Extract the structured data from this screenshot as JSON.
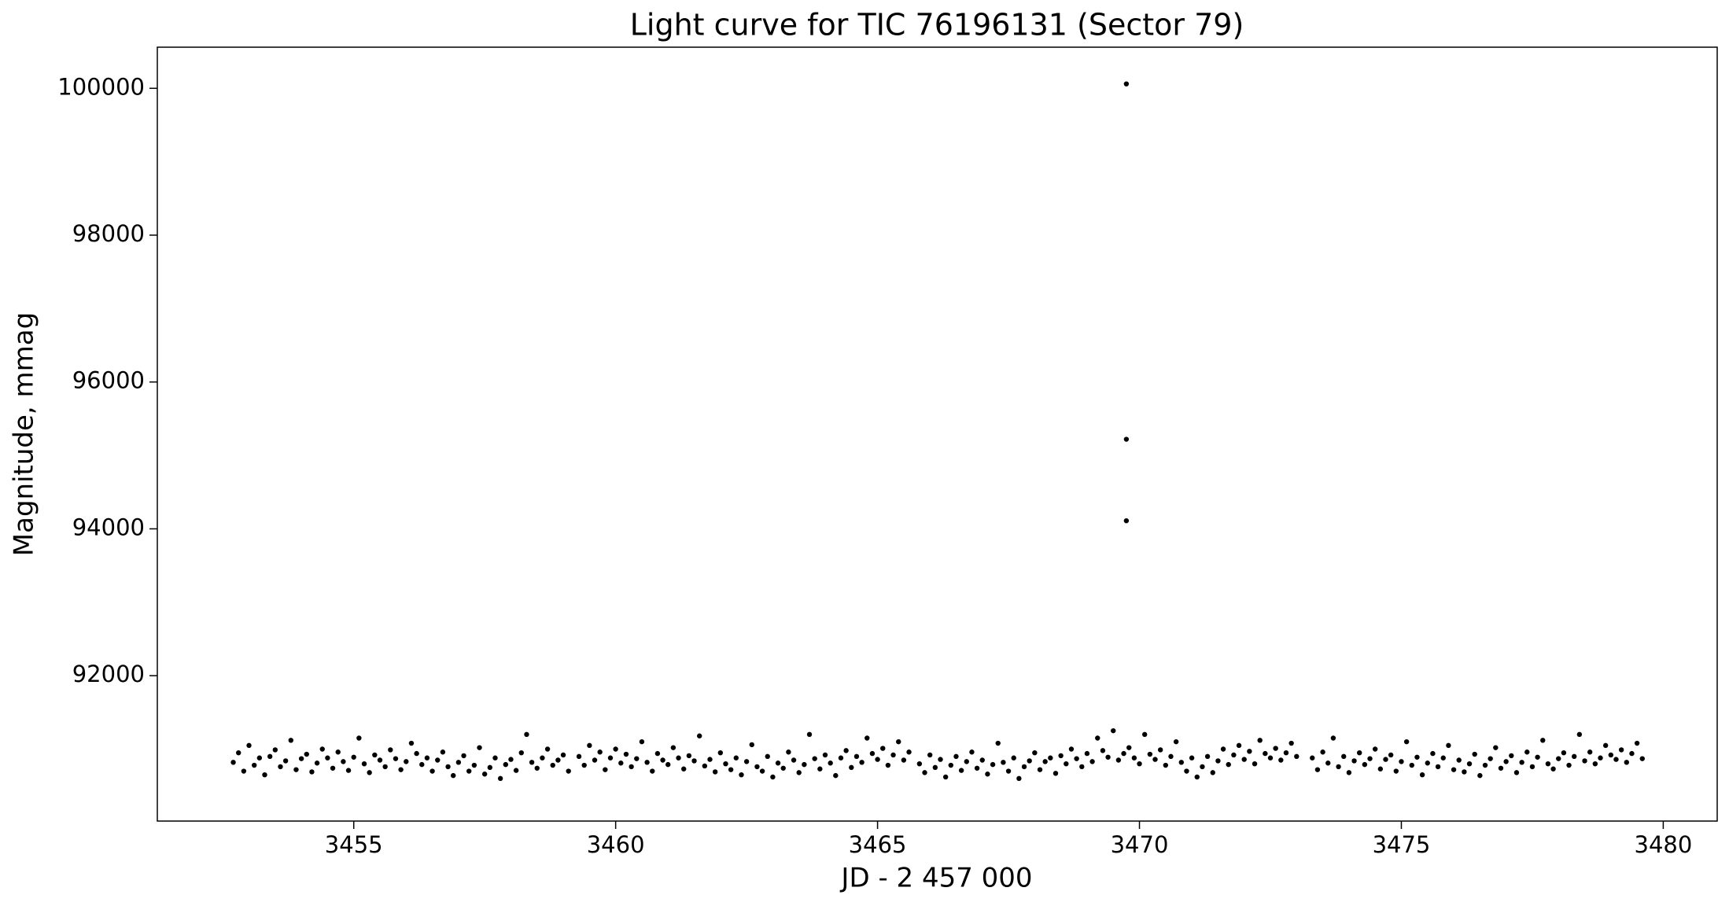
{
  "chart_data": {
    "type": "scatter",
    "title": "Light curve for TIC 76196131 (Sector 79)",
    "x_label": "JD - 2 457 000",
    "y_label": "Magnitude, mmag",
    "color": "#000000",
    "grid": false,
    "xlim": [
      3451.25,
      3481.03
    ],
    "ylim": [
      90020,
      100560
    ],
    "xticks": [
      3455,
      3460,
      3465,
      3470,
      3475,
      3480
    ],
    "yticks": [
      92000,
      94000,
      96000,
      98000,
      100000
    ],
    "x": [
      3452.7,
      3452.8,
      3452.9,
      3453,
      3453.1,
      3453.2,
      3453.3,
      3453.4,
      3453.5,
      3453.6,
      3453.7,
      3453.8,
      3453.9,
      3454,
      3454.1,
      3454.2,
      3454.3,
      3454.4,
      3454.5,
      3454.6,
      3454.7,
      3454.8,
      3454.9,
      3455,
      3455.1,
      3455.2,
      3455.3,
      3455.4,
      3455.5,
      3455.6,
      3455.7,
      3455.8,
      3455.9,
      3456,
      3456.1,
      3456.2,
      3456.3,
      3456.4,
      3456.5,
      3456.6,
      3456.7,
      3456.8,
      3456.9,
      3457,
      3457.1,
      3457.2,
      3457.3,
      3457.4,
      3457.5,
      3457.6,
      3457.7,
      3457.8,
      3457.9,
      3458,
      3458.1,
      3458.2,
      3458.3,
      3458.4,
      3458.5,
      3458.6,
      3458.7,
      3458.8,
      3458.9,
      3459,
      3459.1,
      3459.3,
      3459.4,
      3459.5,
      3459.6,
      3459.7,
      3459.8,
      3459.9,
      3460,
      3460.1,
      3460.2,
      3460.3,
      3460.4,
      3460.5,
      3460.6,
      3460.7,
      3460.8,
      3460.9,
      3461,
      3461.1,
      3461.2,
      3461.3,
      3461.4,
      3461.5,
      3461.6,
      3461.7,
      3461.8,
      3461.9,
      3462,
      3462.1,
      3462.2,
      3462.3,
      3462.4,
      3462.5,
      3462.6,
      3462.7,
      3462.8,
      3462.9,
      3463,
      3463.1,
      3463.2,
      3463.3,
      3463.4,
      3463.5,
      3463.6,
      3463.7,
      3463.8,
      3463.9,
      3464,
      3464.1,
      3464.2,
      3464.3,
      3464.4,
      3464.5,
      3464.6,
      3464.7,
      3464.8,
      3464.9,
      3465,
      3465.1,
      3465.2,
      3465.3,
      3465.4,
      3465.5,
      3465.6,
      3465.8,
      3465.9,
      3466,
      3466.1,
      3466.2,
      3466.3,
      3466.4,
      3466.5,
      3466.6,
      3466.7,
      3466.8,
      3466.9,
      3467,
      3467.1,
      3467.2,
      3467.3,
      3467.4,
      3467.5,
      3467.6,
      3467.7,
      3467.8,
      3467.9,
      3468,
      3468.1,
      3468.2,
      3468.3,
      3468.4,
      3468.5,
      3468.6,
      3468.7,
      3468.8,
      3468.9,
      3469,
      3469.1,
      3469.2,
      3469.3,
      3469.4,
      3469.5,
      3469.6,
      3469.7,
      3469.8,
      3469.9,
      3470,
      3470.1,
      3470.2,
      3470.3,
      3470.4,
      3470.5,
      3470.6,
      3470.7,
      3470.8,
      3470.9,
      3471,
      3471.1,
      3471.2,
      3471.3,
      3471.4,
      3471.5,
      3471.6,
      3471.7,
      3471.8,
      3471.9,
      3472,
      3472.1,
      3472.2,
      3472.3,
      3472.4,
      3472.5,
      3472.6,
      3472.7,
      3472.8,
      3472.9,
      3473,
      3473.3,
      3473.4,
      3473.5,
      3473.6,
      3473.7,
      3473.8,
      3473.9,
      3474,
      3474.1,
      3474.2,
      3474.3,
      3474.4,
      3474.5,
      3474.6,
      3474.7,
      3474.8,
      3474.9,
      3475,
      3475.1,
      3475.2,
      3475.3,
      3475.4,
      3475.5,
      3475.6,
      3475.7,
      3475.8,
      3475.9,
      3476,
      3476.1,
      3476.2,
      3476.3,
      3476.4,
      3476.5,
      3476.6,
      3476.7,
      3476.8,
      3476.9,
      3477,
      3477.1,
      3477.2,
      3477.3,
      3477.4,
      3477.5,
      3477.6,
      3477.7,
      3477.8,
      3477.9,
      3478,
      3478.1,
      3478.2,
      3478.3,
      3478.4,
      3478.5,
      3478.6,
      3478.7,
      3478.8,
      3478.9,
      3479,
      3479.1,
      3479.2,
      3479.3,
      3479.4,
      3479.5,
      3479.6,
      3469.75,
      3469.75,
      3469.75
    ],
    "values": [
      90820,
      90950,
      90700,
      91050,
      90780,
      90880,
      90650,
      90900,
      90990,
      90760,
      90840,
      91120,
      90720,
      90870,
      90930,
      90690,
      90810,
      91000,
      90880,
      90740,
      90960,
      90830,
      90710,
      90890,
      91150,
      90800,
      90680,
      90920,
      90850,
      90760,
      90990,
      90870,
      90720,
      90830,
      91080,
      90940,
      90790,
      90880,
      90700,
      90850,
      90960,
      90760,
      90640,
      90820,
      90910,
      90700,
      90780,
      91020,
      90660,
      90750,
      90880,
      90600,
      90790,
      90860,
      90710,
      90950,
      91200,
      90820,
      90740,
      90880,
      91000,
      90780,
      90850,
      90920,
      90700,
      90900,
      90780,
      91050,
      90850,
      90960,
      90720,
      90880,
      91000,
      90810,
      90930,
      90760,
      90870,
      91100,
      90820,
      90700,
      90940,
      90850,
      90790,
      91020,
      90880,
      90730,
      90910,
      90840,
      91180,
      90770,
      90860,
      90690,
      90950,
      90800,
      90720,
      90880,
      90650,
      90830,
      91060,
      90760,
      90700,
      90900,
      90620,
      90810,
      90740,
      90960,
      90850,
      90680,
      90790,
      91200,
      90870,
      90730,
      90920,
      90810,
      90640,
      90880,
      90980,
      90750,
      90900,
      90820,
      91150,
      90940,
      90860,
      91010,
      90780,
      90920,
      91100,
      90850,
      90960,
      90800,
      90680,
      90920,
      90750,
      90860,
      90620,
      90780,
      90900,
      90710,
      90830,
      90960,
      90740,
      90850,
      90660,
      90790,
      91080,
      90820,
      90700,
      90880,
      90600,
      90760,
      90840,
      90950,
      90720,
      90830,
      90880,
      90670,
      90910,
      90800,
      91000,
      90870,
      90760,
      90940,
      90830,
      91150,
      90980,
      90890,
      91250,
      90850,
      90940,
      91020,
      90880,
      90800,
      91200,
      90930,
      90860,
      90990,
      90780,
      90900,
      91100,
      90820,
      90700,
      90880,
      90620,
      90760,
      90900,
      90680,
      90840,
      91000,
      90790,
      90920,
      91050,
      90860,
      90970,
      90800,
      91120,
      90940,
      90880,
      91010,
      90850,
      90950,
      91080,
      90900,
      90880,
      90720,
      90960,
      90810,
      91150,
      90760,
      90900,
      90680,
      90840,
      90950,
      90790,
      90870,
      91000,
      90730,
      90860,
      90920,
      90700,
      90830,
      91100,
      90780,
      90890,
      90650,
      90810,
      90940,
      90760,
      90880,
      91050,
      90720,
      90850,
      90690,
      90800,
      90930,
      90640,
      90780,
      90870,
      91020,
      90740,
      90830,
      90910,
      90680,
      90820,
      90960,
      90760,
      90890,
      91120,
      90800,
      90730,
      90870,
      90950,
      90780,
      90900,
      91200,
      90840,
      90960,
      90800,
      90880,
      91050,
      90920,
      90860,
      90990,
      90820,
      90940,
      91080,
      90870,
      100060,
      95220,
      94110
    ]
  }
}
